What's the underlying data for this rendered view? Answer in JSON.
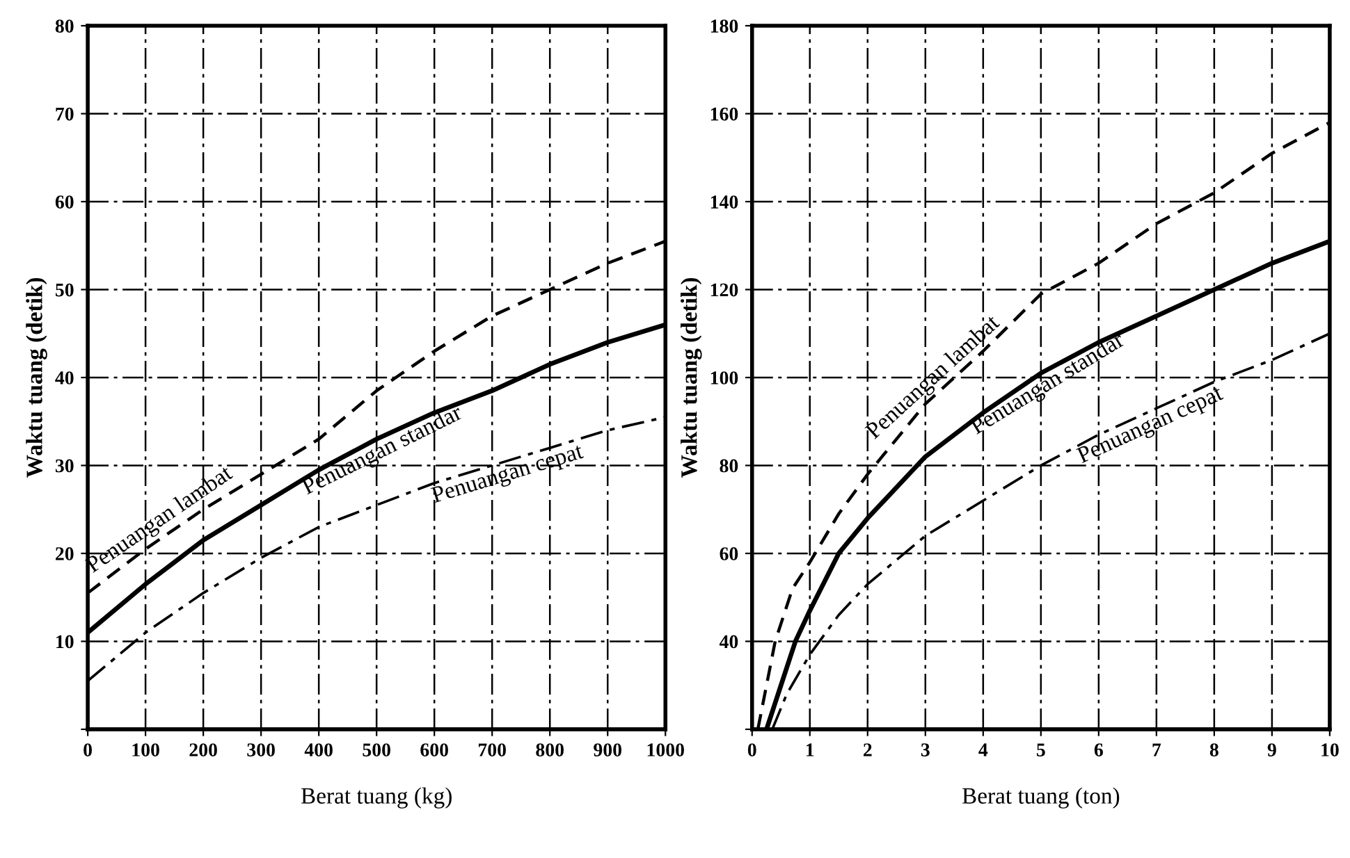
{
  "chart_data": [
    {
      "type": "line",
      "xlabel": "Berat tuang (kg)",
      "ylabel": "Waktu tuang (detik)",
      "xlim": [
        0,
        1000
      ],
      "ylim": [
        0,
        80
      ],
      "xticks": [
        0,
        100,
        200,
        300,
        400,
        500,
        600,
        700,
        800,
        900,
        1000
      ],
      "yticks": [
        {
          "value": 0,
          "label": null
        },
        10,
        20,
        30,
        40,
        50,
        60,
        70,
        80
      ],
      "grid": true,
      "legend": false,
      "series": [
        {
          "name": "Penuangan lambat",
          "color": "#000000",
          "line_style": "dashed",
          "x": [
            0,
            100,
            200,
            300,
            400,
            500,
            600,
            700,
            800,
            900,
            1000
          ],
          "values": [
            15.5,
            20.5,
            25,
            29,
            33,
            38.5,
            43,
            47,
            50,
            53,
            55.5
          ]
        },
        {
          "name": "Penuangan standar",
          "color": "#000000",
          "line_style": "solid",
          "x": [
            0,
            100,
            200,
            300,
            400,
            500,
            600,
            700,
            800,
            900,
            1000
          ],
          "values": [
            11,
            16.5,
            21.5,
            25.5,
            29.5,
            33,
            36,
            38.5,
            41.5,
            44,
            46
          ]
        },
        {
          "name": "Penuangan cepat",
          "color": "#000000",
          "line_style": "dashdot",
          "x": [
            0,
            100,
            200,
            300,
            400,
            500,
            600,
            700,
            800,
            900,
            1000
          ],
          "values": [
            5.5,
            11,
            15.5,
            19.5,
            23,
            25.5,
            28,
            30,
            32,
            34,
            35.5
          ]
        }
      ]
    },
    {
      "type": "line",
      "xlabel": "Berat tuang (ton)",
      "ylabel": "Waktu tuang (detik)",
      "xlim": [
        0,
        10
      ],
      "ylim": [
        20,
        180
      ],
      "xticks": [
        0,
        1,
        2,
        3,
        4,
        5,
        6,
        7,
        8,
        9,
        10
      ],
      "yticks": [
        {
          "value": 20,
          "label": null
        },
        40,
        60,
        80,
        100,
        120,
        140,
        160,
        180
      ],
      "grid": true,
      "legend": false,
      "series": [
        {
          "name": "Penuangan lambat",
          "color": "#000000",
          "line_style": "dashed",
          "x": [
            0.1,
            0.25,
            0.4,
            0.7,
            1,
            1.5,
            2,
            3,
            4,
            5,
            6,
            7,
            8,
            9,
            10
          ],
          "values": [
            20,
            30,
            40,
            52,
            58,
            69,
            78,
            94,
            106,
            119,
            126,
            135,
            142,
            151,
            158
          ]
        },
        {
          "name": "Penuangan standar",
          "color": "#000000",
          "line_style": "solid",
          "x": [
            0.25,
            0.5,
            0.75,
            1,
            1.5,
            2,
            3,
            4,
            5,
            6,
            7,
            8,
            9,
            10
          ],
          "values": [
            20,
            30,
            40,
            47,
            60,
            68,
            82,
            92,
            101,
            108,
            114,
            120,
            126,
            131
          ]
        },
        {
          "name": "Penuangan cepat",
          "color": "#000000",
          "line_style": "dashdot",
          "x": [
            0.35,
            0.6,
            1,
            1.5,
            2,
            3,
            4,
            5,
            6,
            7,
            8,
            9,
            10
          ],
          "values": [
            20,
            28,
            37,
            46,
            53,
            64,
            72,
            80,
            87,
            93,
            99,
            104,
            110
          ]
        }
      ]
    }
  ]
}
